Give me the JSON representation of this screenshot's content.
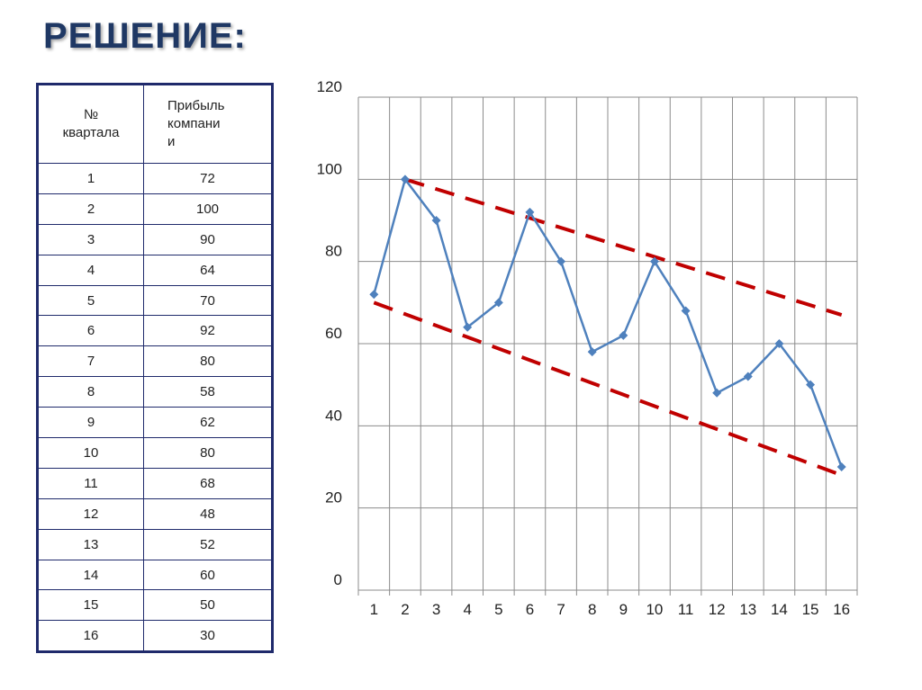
{
  "page": {
    "title": "РЕШЕНИЕ:"
  },
  "table": {
    "headers": [
      "№ квартала",
      "Прибыль компани и"
    ],
    "header_lines": [
      [
        "№",
        "квартала"
      ],
      [
        "Прибыль",
        "компани",
        "и"
      ]
    ],
    "rows": [
      [
        "1",
        "72"
      ],
      [
        "2",
        "100"
      ],
      [
        "3",
        "90"
      ],
      [
        "4",
        "64"
      ],
      [
        "5",
        "70"
      ],
      [
        "6",
        "92"
      ],
      [
        "7",
        "80"
      ],
      [
        "8",
        "58"
      ],
      [
        "9",
        "62"
      ],
      [
        "10",
        "80"
      ],
      [
        "11",
        "68"
      ],
      [
        "12",
        "48"
      ],
      [
        "13",
        "52"
      ],
      [
        "14",
        "60"
      ],
      [
        "15",
        "50"
      ],
      [
        "16",
        "30"
      ]
    ]
  },
  "chart_data": {
    "type": "line",
    "title": "",
    "xlabel": "",
    "ylabel": "",
    "categories": [
      "1",
      "2",
      "3",
      "4",
      "5",
      "6",
      "7",
      "8",
      "9",
      "10",
      "11",
      "12",
      "13",
      "14",
      "15",
      "16"
    ],
    "series": [
      {
        "values": [
          72,
          100,
          90,
          64,
          70,
          92,
          80,
          58,
          62,
          80,
          68,
          48,
          52,
          60,
          50,
          30
        ],
        "color": "#4f81bd",
        "marker": "diamond"
      }
    ],
    "trend_lines": [
      {
        "style": "dashed",
        "color": "#c00000",
        "from": {
          "x": 2,
          "y": 100
        },
        "to": {
          "x": 16,
          "y": 67
        }
      },
      {
        "style": "dashed",
        "color": "#c00000",
        "from": {
          "x": 1,
          "y": 70
        },
        "to": {
          "x": 16,
          "y": 28
        }
      }
    ],
    "ylim": [
      0,
      120
    ],
    "yticks": [
      0,
      20,
      40,
      60,
      80,
      100,
      120
    ],
    "grid": true,
    "legend": "none"
  }
}
